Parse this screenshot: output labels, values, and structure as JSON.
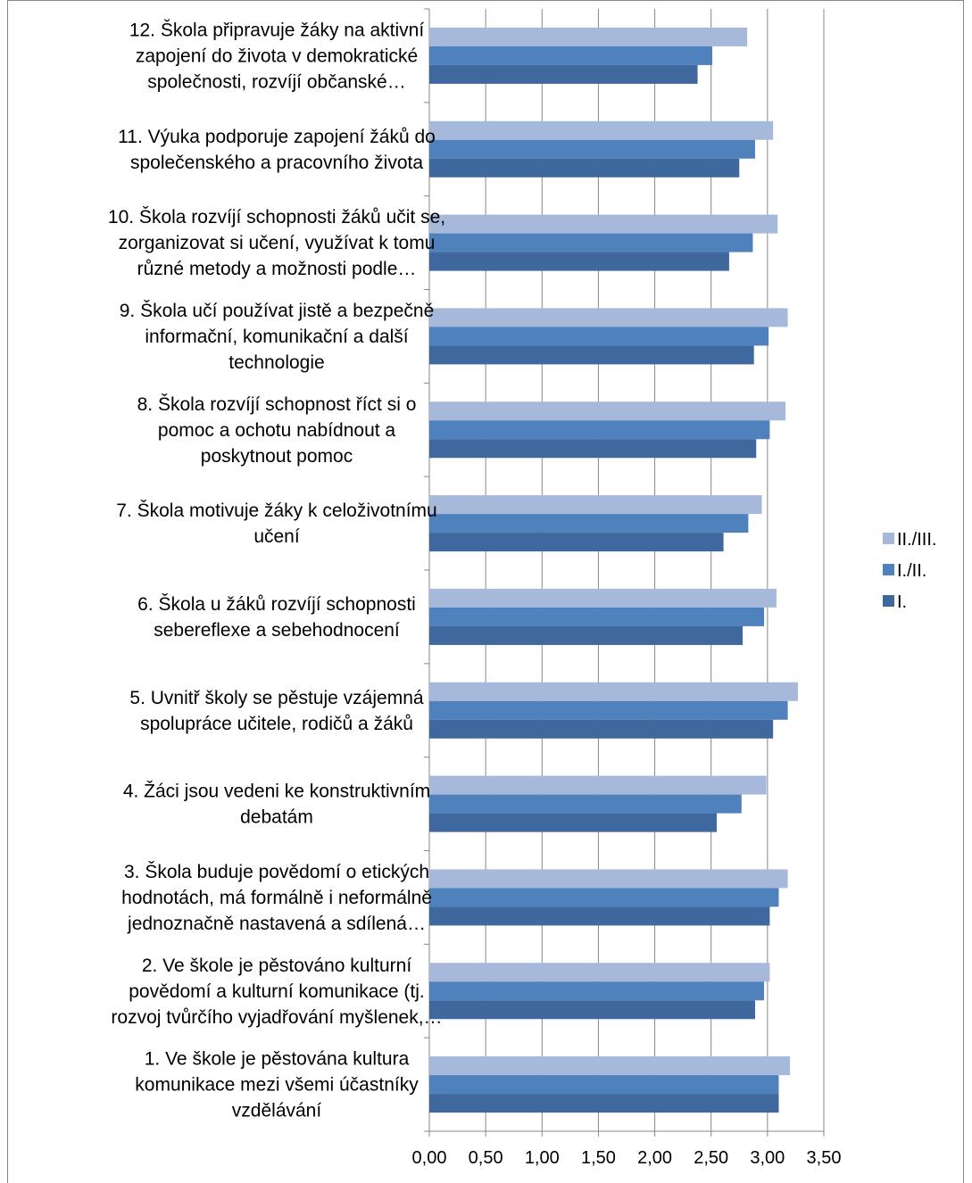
{
  "chart_data": {
    "type": "bar",
    "orientation": "horizontal",
    "categories": [
      [
        "1. Ve škole je pěstována kultura",
        "komunikace mezi všemi účastníky",
        "vzdělávání"
      ],
      [
        "2. Ve škole je pěstováno kulturní",
        "povědomí a kulturní komunikace (tj.",
        "rozvoj tvůrčího vyjadřování myšlenek,…"
      ],
      [
        "3. Škola buduje povědomí o etických",
        "hodnotách, má formálně i neformálně",
        "jednoznačně nastavená a sdílená…"
      ],
      [
        "4. Žáci jsou vedeni ke konstruktivním",
        "debatám"
      ],
      [
        "5. Uvnitř školy se pěstuje vzájemná",
        "spolupráce učitele, rodičů a žáků"
      ],
      [
        "6. Škola u žáků rozvíjí schopnosti",
        "sebereflexe a sebehodnocení"
      ],
      [
        "7. Škola motivuje žáky k celoživotnímu",
        "učení"
      ],
      [
        "8. Škola rozvíjí schopnost říct si o",
        "pomoc a ochotu nabídnout a",
        "poskytnout pomoc"
      ],
      [
        "9. Škola učí používat jistě a bezpečně",
        "informační, komunikační a další",
        "technologie"
      ],
      [
        "10. Škola rozvíjí schopnosti žáků učit se,",
        "zorganizovat si učení, využívat k tomu",
        "různé metody a možnosti podle…"
      ],
      [
        "11. Výuka podporuje zapojení žáků do",
        "společenského a pracovního života"
      ],
      [
        "12. Škola připravuje žáky na aktivní",
        "zapojení do života v demokratické",
        "společnosti, rozvíjí občanské…"
      ]
    ],
    "series": [
      {
        "name": "II./III.",
        "color": "#A6B9DB",
        "values": [
          3.2,
          3.02,
          3.18,
          2.99,
          3.27,
          3.08,
          2.95,
          3.16,
          3.18,
          3.09,
          3.05,
          2.82
        ]
      },
      {
        "name": "I./II.",
        "color": "#4F81BD",
        "values": [
          3.1,
          2.97,
          3.1,
          2.77,
          3.18,
          2.97,
          2.83,
          3.02,
          3.01,
          2.87,
          2.89,
          2.51
        ]
      },
      {
        "name": "I.",
        "color": "#3F689E",
        "values": [
          3.1,
          2.89,
          3.02,
          2.55,
          3.05,
          2.78,
          2.61,
          2.9,
          2.88,
          2.66,
          2.75,
          2.38
        ]
      }
    ],
    "xlim": [
      0,
      3.5
    ],
    "ticks": [
      "0,00",
      "0,50",
      "1,00",
      "1,50",
      "2,00",
      "2,50",
      "3,00",
      "3,50"
    ],
    "gridlines": true,
    "legend_position": "right",
    "title": "",
    "xlabel": "",
    "ylabel": ""
  }
}
